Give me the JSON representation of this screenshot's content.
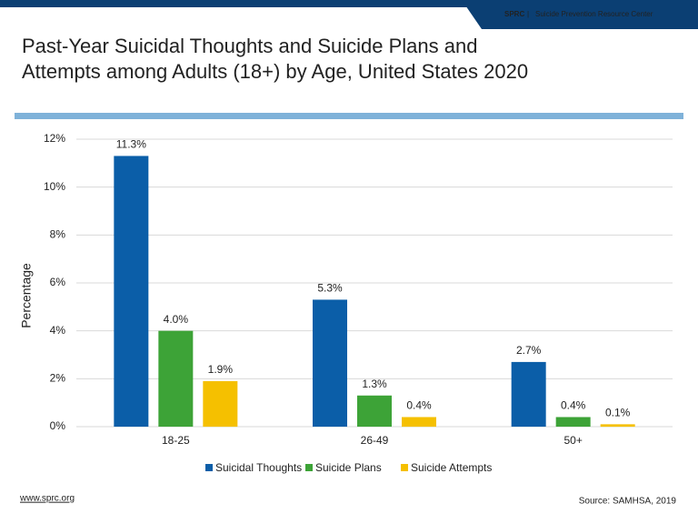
{
  "header": {
    "brand": "SPRC",
    "separator": "|",
    "org": "Suicide Prevention Resource Center"
  },
  "chart_data": {
    "type": "bar",
    "title": [
      "Past-Year Suicidal Thoughts and Suicide Plans and",
      "Attempts among Adults (18+) by Age, United States 2020"
    ],
    "y_label": "Percentage",
    "categories": [
      "18-25",
      "26-49",
      "50+"
    ],
    "series": [
      {
        "name": "Suicidal Thoughts",
        "color": "#0b5ea8",
        "values": [
          11.3,
          5.3,
          2.7
        ],
        "value_labels": [
          "11.3%",
          "5.3%",
          "2.7%"
        ]
      },
      {
        "name": "Suicide Plans",
        "color": "#3da337",
        "values": [
          4.0,
          1.3,
          0.4
        ],
        "value_labels": [
          "4.0%",
          "1.3%",
          "0.4%"
        ]
      },
      {
        "name": "Suicide Attempts",
        "color": "#f5c000",
        "values": [
          1.9,
          0.4,
          0.1
        ],
        "value_labels": [
          "1.9%",
          "0.4%",
          "0.1%"
        ]
      }
    ],
    "ylim": [
      0,
      12
    ],
    "yticks": [
      {
        "value": 0,
        "label": "0%"
      },
      {
        "value": 2,
        "label": "2%"
      },
      {
        "value": 4,
        "label": "4%"
      },
      {
        "value": 6,
        "label": "6%"
      },
      {
        "value": 8,
        "label": "8%"
      },
      {
        "value": 10,
        "label": "10%"
      },
      {
        "value": 12,
        "label": "12%"
      }
    ],
    "grid": true,
    "legend": "bottom"
  },
  "footer": {
    "url": "www.sprc.org",
    "source": "Source: SAMHSA, 2019"
  }
}
